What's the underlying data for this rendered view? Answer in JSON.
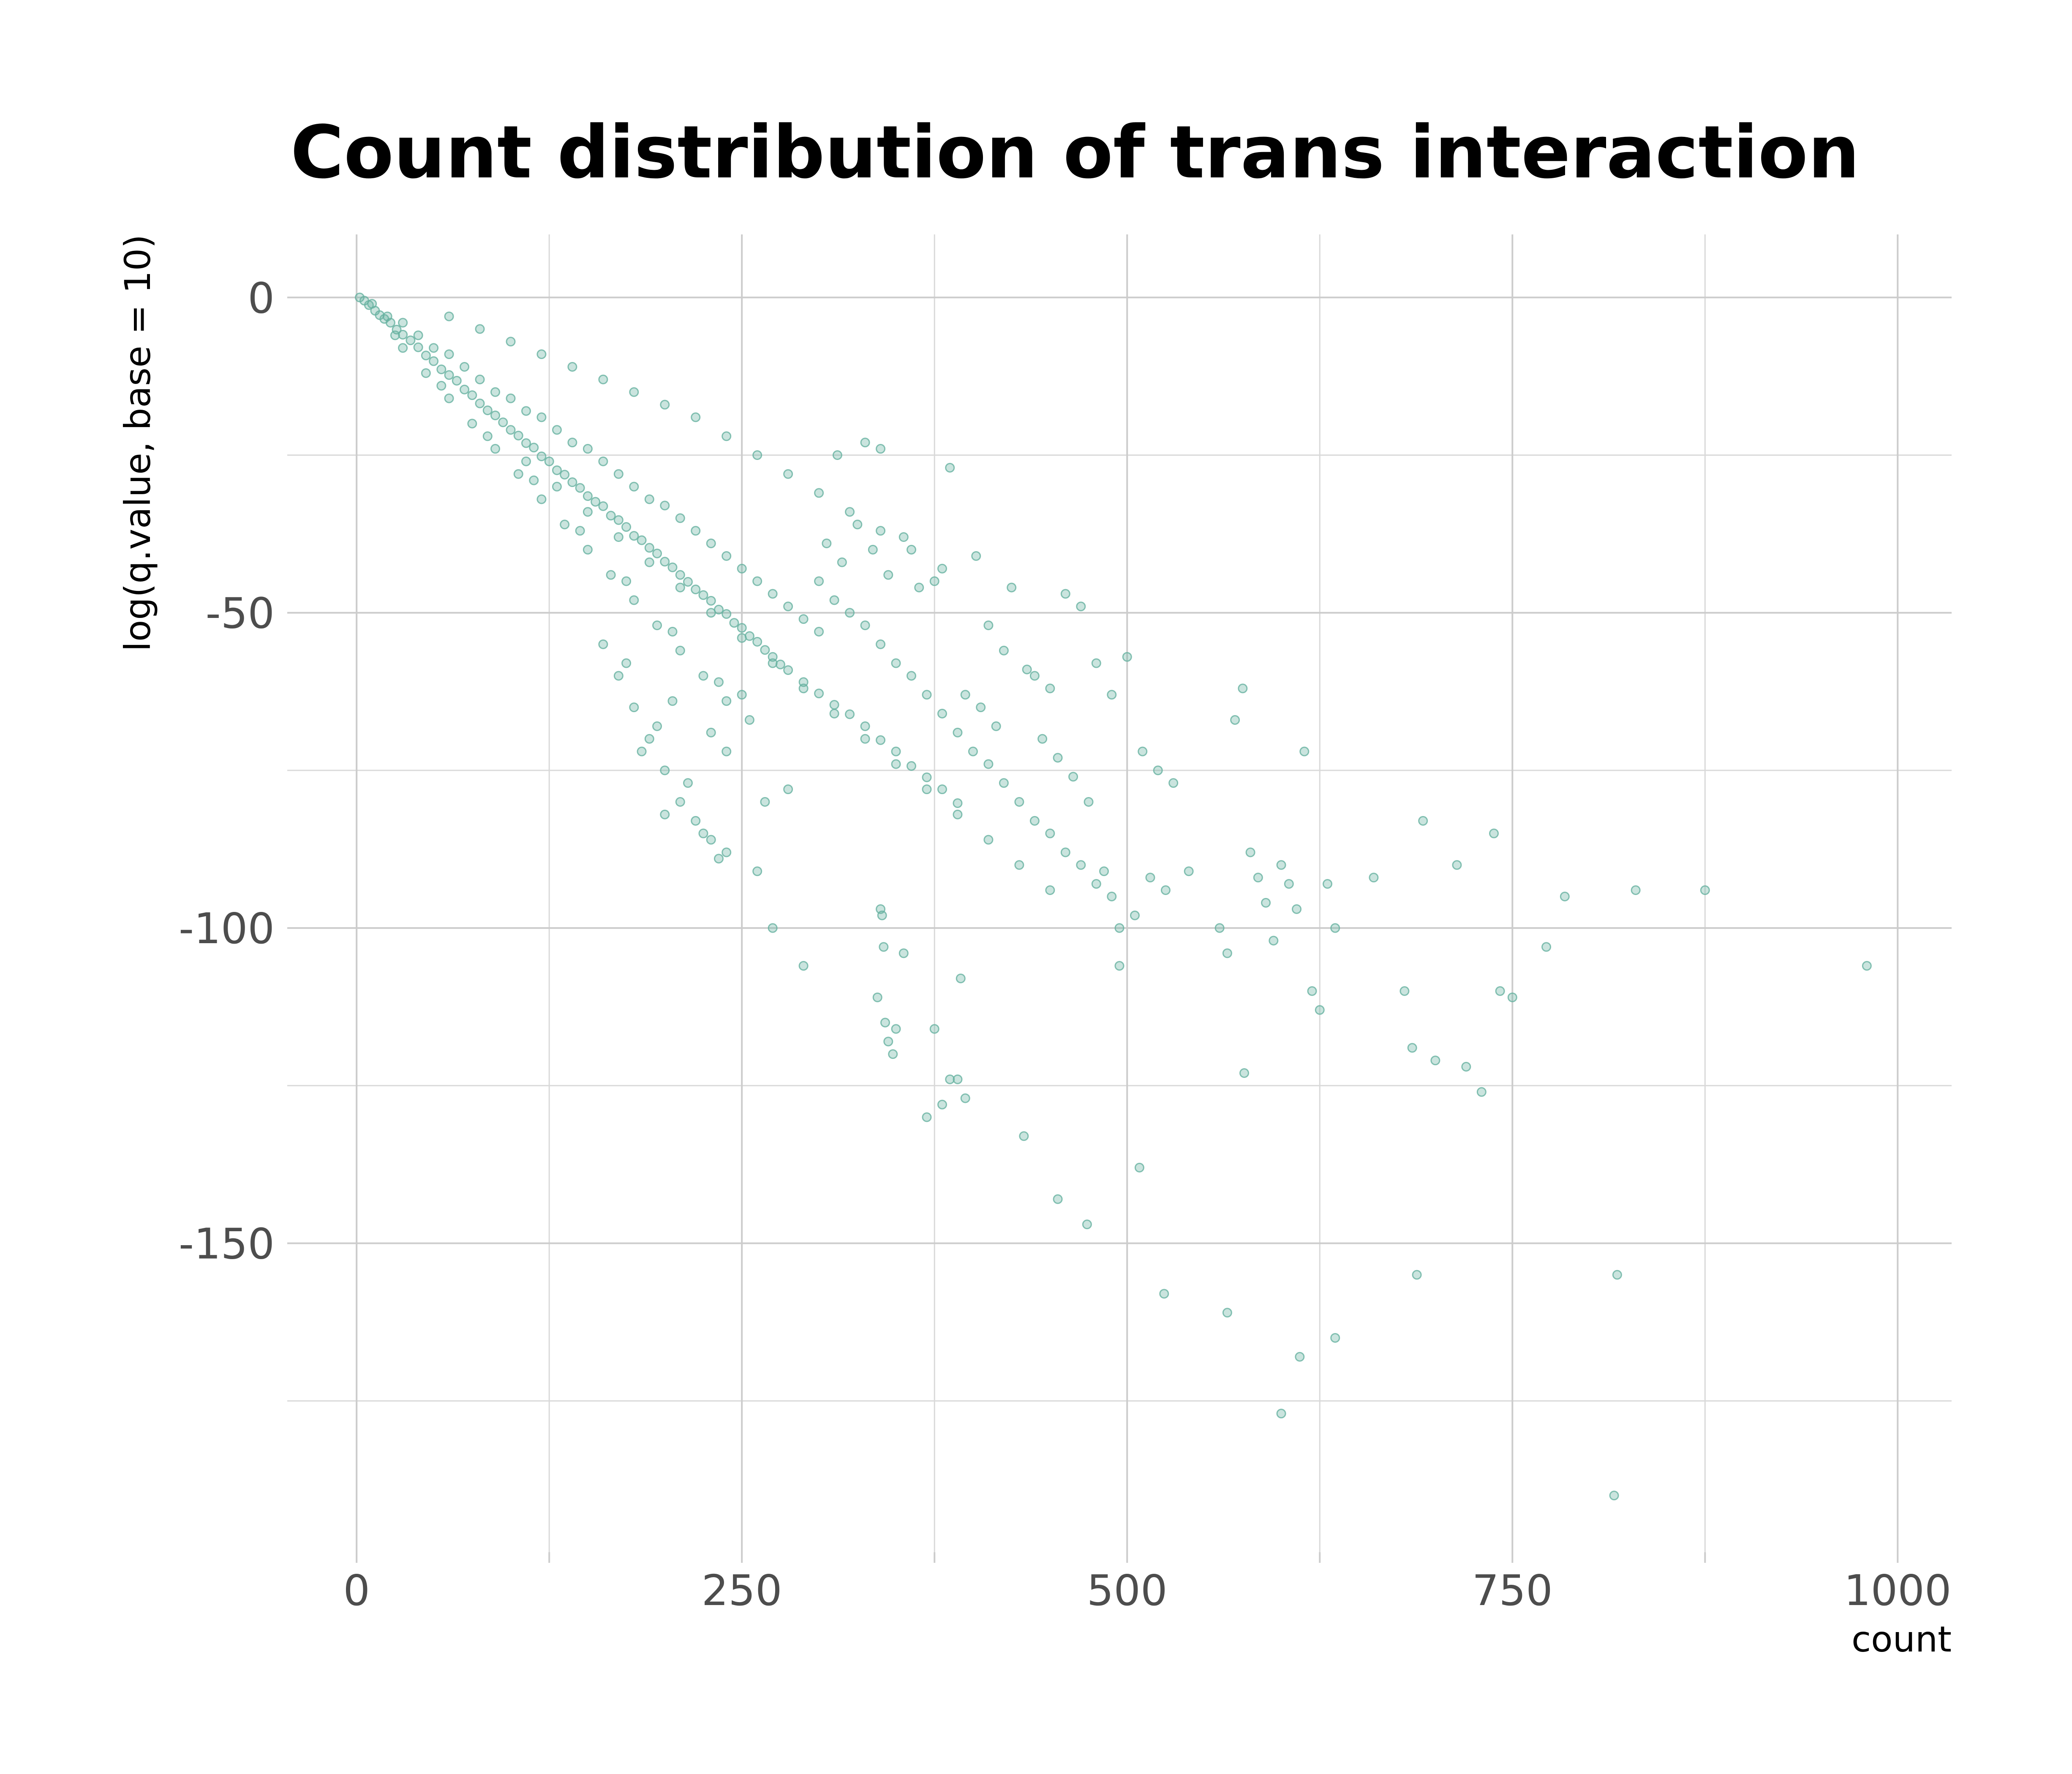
{
  "chart_data": {
    "type": "scatter",
    "title": "Count distribution of trans interaction",
    "xlabel": "count",
    "ylabel": "log(q.value, base = 10)",
    "xlim": [
      -45,
      1035
    ],
    "ylim": [
      -199,
      10
    ],
    "x_ticks": [
      {
        "value": 0,
        "label": "0"
      },
      {
        "value": 250,
        "label": "250"
      },
      {
        "value": 500,
        "label": "500"
      },
      {
        "value": 750,
        "label": "750"
      },
      {
        "value": 1000,
        "label": "1000"
      }
    ],
    "y_ticks": [
      {
        "value": 0,
        "label": "0"
      },
      {
        "value": -50,
        "label": "-50"
      },
      {
        "value": -100,
        "label": "-100"
      },
      {
        "value": -150,
        "label": "-150"
      }
    ],
    "x_minor": [
      125,
      375,
      625,
      875
    ],
    "y_minor": [
      -25,
      -75,
      -125,
      -175
    ],
    "grid": true,
    "legend": "none",
    "point_color": "#66b2a0",
    "point_opacity": 0.35,
    "series": [
      {
        "values": [
          [
            2,
            0
          ],
          [
            5,
            -0.5
          ],
          [
            8,
            -1.2
          ],
          [
            12,
            -2.1
          ],
          [
            15,
            -2.8
          ],
          [
            18,
            -3.4
          ],
          [
            22,
            -4.0
          ],
          [
            26,
            -5.1
          ],
          [
            30,
            -5.9
          ],
          [
            35,
            -6.8
          ],
          [
            40,
            -7.9
          ],
          [
            45,
            -9.2
          ],
          [
            50,
            -10.1
          ],
          [
            55,
            -11.4
          ],
          [
            60,
            -12.3
          ],
          [
            65,
            -13.2
          ],
          [
            70,
            -14.6
          ],
          [
            75,
            -15.5
          ],
          [
            80,
            -16.8
          ],
          [
            85,
            -17.9
          ],
          [
            90,
            -18.7
          ],
          [
            95,
            -19.8
          ],
          [
            100,
            -21.0
          ],
          [
            105,
            -21.9
          ],
          [
            110,
            -23.1
          ],
          [
            115,
            -23.8
          ],
          [
            120,
            -25.2
          ],
          [
            125,
            -26.0
          ],
          [
            130,
            -27.4
          ],
          [
            135,
            -28.1
          ],
          [
            140,
            -29.3
          ],
          [
            145,
            -30.2
          ],
          [
            150,
            -31.5
          ],
          [
            155,
            -32.4
          ],
          [
            160,
            -33.1
          ],
          [
            165,
            -34.6
          ],
          [
            170,
            -35.3
          ],
          [
            175,
            -36.4
          ],
          [
            180,
            -37.8
          ],
          [
            185,
            -38.5
          ],
          [
            190,
            -39.7
          ],
          [
            195,
            -40.6
          ],
          [
            200,
            -41.9
          ],
          [
            205,
            -42.8
          ],
          [
            210,
            -44.0
          ],
          [
            215,
            -45.1
          ],
          [
            220,
            -46.3
          ],
          [
            225,
            -47.2
          ],
          [
            230,
            -48.1
          ],
          [
            235,
            -49.5
          ],
          [
            240,
            -50.2
          ],
          [
            245,
            -51.6
          ],
          [
            250,
            -52.4
          ],
          [
            255,
            -53.7
          ],
          [
            260,
            -54.6
          ],
          [
            265,
            -55.9
          ],
          [
            270,
            -57.0
          ],
          [
            275,
            -58.2
          ],
          [
            280,
            -59.1
          ],
          [
            290,
            -61.0
          ],
          [
            300,
            -62.8
          ],
          [
            310,
            -64.6
          ],
          [
            320,
            -66.1
          ],
          [
            330,
            -68.0
          ],
          [
            340,
            -70.2
          ],
          [
            350,
            -72.0
          ],
          [
            360,
            -74.3
          ],
          [
            370,
            -76.1
          ],
          [
            380,
            -78.0
          ],
          [
            390,
            -80.2
          ],
          [
            10,
            -1
          ],
          [
            20,
            -3
          ],
          [
            30,
            -4
          ],
          [
            40,
            -6
          ],
          [
            50,
            -8
          ],
          [
            60,
            -9
          ],
          [
            70,
            -11
          ],
          [
            80,
            -13
          ],
          [
            90,
            -15
          ],
          [
            100,
            -16
          ],
          [
            110,
            -18
          ],
          [
            120,
            -19
          ],
          [
            130,
            -21
          ],
          [
            140,
            -23
          ],
          [
            150,
            -24
          ],
          [
            160,
            -26
          ],
          [
            170,
            -28
          ],
          [
            180,
            -30
          ],
          [
            190,
            -32
          ],
          [
            200,
            -33
          ],
          [
            210,
            -35
          ],
          [
            220,
            -37
          ],
          [
            230,
            -39
          ],
          [
            240,
            -41
          ],
          [
            250,
            -43
          ],
          [
            260,
            -45
          ],
          [
            270,
            -47
          ],
          [
            280,
            -49
          ],
          [
            290,
            -51
          ],
          [
            300,
            -53
          ],
          [
            30,
            -8
          ],
          [
            45,
            -12
          ],
          [
            60,
            -16
          ],
          [
            75,
            -20
          ],
          [
            90,
            -24
          ],
          [
            105,
            -28
          ],
          [
            120,
            -32
          ],
          [
            135,
            -36
          ],
          [
            150,
            -40
          ],
          [
            165,
            -44
          ],
          [
            180,
            -48
          ],
          [
            195,
            -52
          ],
          [
            210,
            -56
          ],
          [
            225,
            -60
          ],
          [
            240,
            -64
          ],
          [
            25,
            -6
          ],
          [
            55,
            -14
          ],
          [
            85,
            -22
          ],
          [
            115,
            -29
          ],
          [
            145,
            -37
          ],
          [
            175,
            -45
          ],
          [
            205,
            -53
          ],
          [
            235,
            -61
          ],
          [
            60,
            -3
          ],
          [
            80,
            -5
          ],
          [
            100,
            -7
          ],
          [
            120,
            -9
          ],
          [
            140,
            -11
          ],
          [
            160,
            -13
          ],
          [
            180,
            -15
          ],
          [
            200,
            -17
          ],
          [
            220,
            -19
          ],
          [
            240,
            -22
          ],
          [
            260,
            -25
          ],
          [
            280,
            -28
          ],
          [
            300,
            -31
          ],
          [
            320,
            -34
          ],
          [
            340,
            -37
          ],
          [
            360,
            -40
          ],
          [
            380,
            -43
          ],
          [
            110,
            -26
          ],
          [
            130,
            -30
          ],
          [
            150,
            -34
          ],
          [
            170,
            -38
          ],
          [
            190,
            -42
          ],
          [
            210,
            -46
          ],
          [
            230,
            -50
          ],
          [
            250,
            -54
          ],
          [
            270,
            -58
          ],
          [
            290,
            -62
          ],
          [
            310,
            -66
          ],
          [
            330,
            -70
          ],
          [
            350,
            -74
          ],
          [
            370,
            -78
          ],
          [
            390,
            -82
          ],
          [
            410,
            -86
          ],
          [
            430,
            -90
          ],
          [
            450,
            -94
          ],
          [
            160,
            -55
          ],
          [
            170,
            -60
          ],
          [
            180,
            -65
          ],
          [
            190,
            -70
          ],
          [
            200,
            -75
          ],
          [
            210,
            -80
          ],
          [
            220,
            -83
          ],
          [
            230,
            -86
          ],
          [
            240,
            -88
          ],
          [
            200,
            -82
          ],
          [
            215,
            -77
          ],
          [
            185,
            -72
          ],
          [
            195,
            -68
          ],
          [
            205,
            -64
          ],
          [
            175,
            -58
          ],
          [
            225,
            -85
          ],
          [
            235,
            -89
          ],
          [
            250,
            -63
          ],
          [
            260,
            -91
          ],
          [
            270,
            -100
          ],
          [
            280,
            -78
          ],
          [
            290,
            -106
          ],
          [
            230,
            -69
          ],
          [
            240,
            -72
          ],
          [
            255,
            -67
          ],
          [
            265,
            -80
          ],
          [
            300,
            -45
          ],
          [
            310,
            -48
          ],
          [
            320,
            -50
          ],
          [
            330,
            -52
          ],
          [
            340,
            -55
          ],
          [
            350,
            -58
          ],
          [
            360,
            -60
          ],
          [
            370,
            -63
          ],
          [
            380,
            -66
          ],
          [
            390,
            -69
          ],
          [
            400,
            -72
          ],
          [
            410,
            -74
          ],
          [
            420,
            -77
          ],
          [
            430,
            -80
          ],
          [
            440,
            -83
          ],
          [
            450,
            -85
          ],
          [
            460,
            -88
          ],
          [
            470,
            -90
          ],
          [
            480,
            -93
          ],
          [
            490,
            -95
          ],
          [
            305,
            -39
          ],
          [
            315,
            -42
          ],
          [
            325,
            -36
          ],
          [
            335,
            -40
          ],
          [
            345,
            -44
          ],
          [
            355,
            -38
          ],
          [
            365,
            -46
          ],
          [
            375,
            -45
          ],
          [
            385,
            -27
          ],
          [
            330,
            -23
          ],
          [
            340,
            -24
          ],
          [
            312,
            -25
          ],
          [
            402,
            -41
          ],
          [
            410,
            -52
          ],
          [
            420,
            -56
          ],
          [
            425,
            -46
          ],
          [
            440,
            -60
          ],
          [
            450,
            -62
          ],
          [
            460,
            -47
          ],
          [
            470,
            -49
          ],
          [
            480,
            -58
          ],
          [
            490,
            -63
          ],
          [
            500,
            -57
          ],
          [
            510,
            -72
          ],
          [
            520,
            -75
          ],
          [
            530,
            -77
          ],
          [
            395,
            -63
          ],
          [
            405,
            -65
          ],
          [
            415,
            -68
          ],
          [
            435,
            -59
          ],
          [
            445,
            -70
          ],
          [
            455,
            -73
          ],
          [
            465,
            -76
          ],
          [
            475,
            -80
          ],
          [
            485,
            -91
          ],
          [
            495,
            -100
          ],
          [
            505,
            -98
          ],
          [
            515,
            -92
          ],
          [
            525,
            -94
          ],
          [
            540,
            -91
          ],
          [
            560,
            -100
          ],
          [
            565,
            -104
          ],
          [
            570,
            -67
          ],
          [
            575,
            -62
          ],
          [
            580,
            -88
          ],
          [
            585,
            -92
          ],
          [
            590,
            -96
          ],
          [
            595,
            -102
          ],
          [
            600,
            -90
          ],
          [
            605,
            -93
          ],
          [
            610,
            -97
          ],
          [
            615,
            -72
          ],
          [
            620,
            -110
          ],
          [
            625,
            -113
          ],
          [
            630,
            -93
          ],
          [
            635,
            -100
          ],
          [
            660,
            -92
          ],
          [
            680,
            -110
          ],
          [
            685,
            -119
          ],
          [
            692,
            -83
          ],
          [
            700,
            -121
          ],
          [
            714,
            -90
          ],
          [
            720,
            -122
          ],
          [
            730,
            -126
          ],
          [
            738,
            -85
          ],
          [
            742,
            -110
          ],
          [
            750,
            -111
          ],
          [
            772,
            -103
          ],
          [
            784,
            -95
          ],
          [
            830,
            -94
          ],
          [
            875,
            -94
          ],
          [
            980,
            -106
          ],
          [
            340,
            -97
          ],
          [
            341,
            -98
          ],
          [
            342,
            -103
          ],
          [
            338,
            -111
          ],
          [
            343,
            -115
          ],
          [
            345,
            -118
          ],
          [
            348,
            -120
          ],
          [
            350,
            -116
          ],
          [
            355,
            -104
          ],
          [
            370,
            -130
          ],
          [
            375,
            -116
          ],
          [
            380,
            -128
          ],
          [
            385,
            -124
          ],
          [
            390,
            -124
          ],
          [
            392,
            -108
          ],
          [
            395,
            -127
          ],
          [
            433,
            -133
          ],
          [
            455,
            -143
          ],
          [
            474,
            -147
          ],
          [
            495,
            -106
          ],
          [
            508,
            -138
          ],
          [
            524,
            -158
          ],
          [
            565,
            -161
          ],
          [
            576,
            -123
          ],
          [
            600,
            -177
          ],
          [
            612,
            -168
          ],
          [
            635,
            -165
          ],
          [
            688,
            -155
          ],
          [
            818,
            -155
          ],
          [
            816,
            -190
          ]
        ]
      }
    ]
  }
}
